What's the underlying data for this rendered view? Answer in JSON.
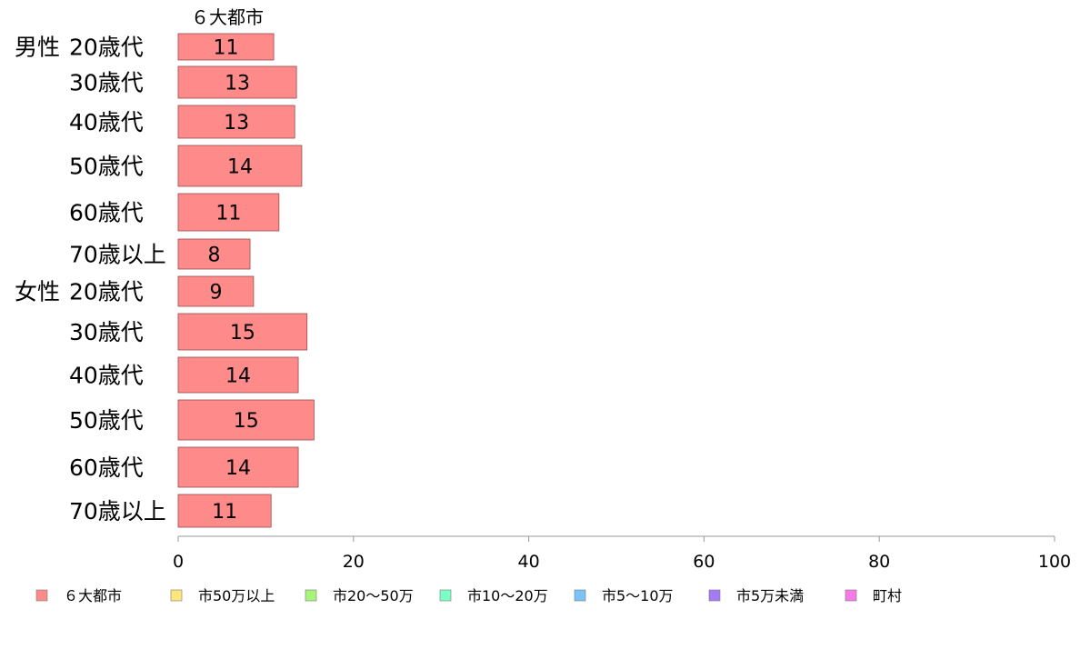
{
  "chart_data": {
    "type": "bar",
    "orientation": "horizontal",
    "series_header": "６大都市",
    "groups": [
      {
        "label": "男性",
        "start_index": 0
      },
      {
        "label": "女性",
        "start_index": 6
      }
    ],
    "categories": [
      "20歳代",
      "30歳代",
      "40歳代",
      "50歳代",
      "60歳代",
      "70歳以上",
      "20歳代",
      "30歳代",
      "40歳代",
      "50歳代",
      "60歳代",
      "70歳以上"
    ],
    "series": [
      {
        "name": "６大都市",
        "color": "#ff8a8a",
        "values": [
          10.9,
          13.5,
          13.3,
          14.1,
          11.5,
          8.2,
          8.6,
          14.7,
          13.7,
          15.5,
          13.7,
          10.6
        ],
        "labels": [
          "11",
          "13",
          "13",
          "14",
          "11",
          "8",
          "9",
          "15",
          "14",
          "15",
          "14",
          "11"
        ]
      }
    ],
    "xlim": [
      0,
      100
    ],
    "xticks": [
      0,
      20,
      40,
      60,
      80,
      100
    ],
    "xtick_labels": [
      "0",
      "20",
      "40",
      "60",
      "80",
      "100"
    ],
    "legend": {
      "position": "bottom",
      "items": [
        {
          "label": "６大都市",
          "color": "#ff8a8a"
        },
        {
          "label": "市50万以上",
          "color": "#ffe57a"
        },
        {
          "label": "市20～50万",
          "color": "#a6f57a"
        },
        {
          "label": "市10～20万",
          "color": "#7affc4"
        },
        {
          "label": "市5～10万",
          "color": "#7ac4f5"
        },
        {
          "label": "市5万未満",
          "color": "#a57af5"
        },
        {
          "label": "町村",
          "color": "#f57ae5"
        }
      ]
    },
    "grid": false
  }
}
